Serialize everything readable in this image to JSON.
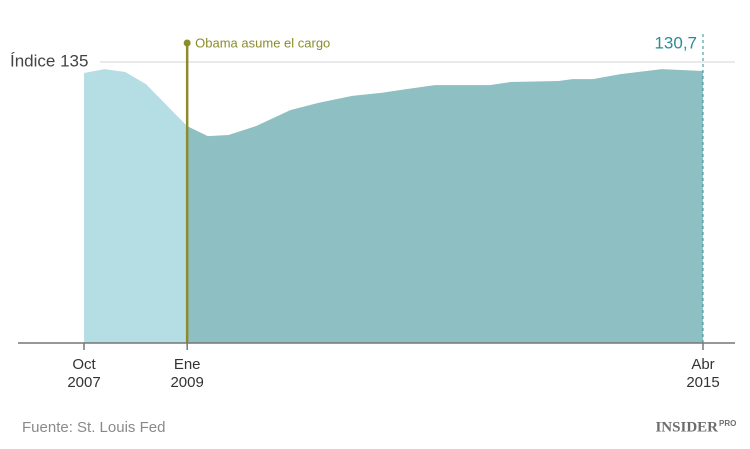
{
  "chart_data": {
    "type": "area",
    "x": [
      "2007-10",
      "2008-01",
      "2008-04",
      "2008-07",
      "2009-01",
      "2009-04",
      "2009-07",
      "2009-11",
      "2010-04",
      "2010-08",
      "2011-01",
      "2011-05",
      "2011-09",
      "2012-01",
      "2012-09",
      "2012-12",
      "2013-07",
      "2013-09",
      "2013-12",
      "2014-04",
      "2014-10",
      "2015-04"
    ],
    "series": [
      {
        "color": "#b5dde4",
        "values": [
          129.7,
          131.6,
          130.2,
          124.4,
          104.2,
          null,
          null,
          null,
          null,
          null,
          null,
          null,
          null,
          null,
          null,
          null,
          null,
          null,
          null,
          null,
          null,
          null
        ]
      },
      {
        "color": "#8ebfc2",
        "values": [
          null,
          null,
          null,
          null,
          104.2,
          99.4,
          99.9,
          104.2,
          111.9,
          115.3,
          118.7,
          120.1,
          122.0,
          123.9,
          123.9,
          125.4,
          125.9,
          126.8,
          126.8,
          129.2,
          131.6,
          130.7
        ],
        "value_labels": [
          null,
          null,
          null,
          null,
          null,
          null,
          null,
          null,
          null,
          null,
          null,
          null,
          null,
          null,
          null,
          null,
          null,
          null,
          null,
          null,
          null,
          "130,7"
        ],
        "label_color": "#2a8d96"
      }
    ],
    "xlim": [
      "2007-10",
      "2015-04"
    ],
    "xticks": [
      {
        "value": "2007-10",
        "label": [
          "Oct",
          "2007"
        ]
      },
      {
        "value": "2009-01",
        "label": [
          "Ene",
          "2009"
        ]
      },
      {
        "value": "2015-04",
        "label": [
          "Abr",
          "2015"
        ]
      }
    ],
    "ylim": [
      0,
      135
    ],
    "yticks": [
      {
        "value": 135,
        "label": "Índice 135"
      }
    ],
    "grid": true,
    "annotation": {
      "x": "2009-01",
      "text": "Obama asume el cargo",
      "color": "#8c8c2c"
    },
    "source": "Fuente: St. Louis Fed",
    "logo": {
      "text": "INSIDER",
      "badge": "PRO"
    }
  }
}
